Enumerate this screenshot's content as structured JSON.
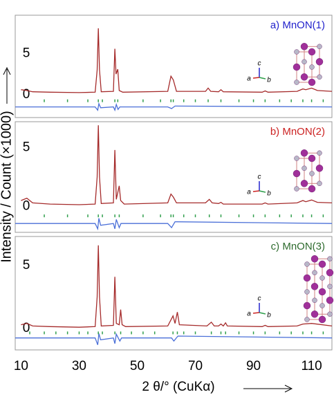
{
  "chart_data": [
    {
      "type": "line",
      "title": "a) MnON(1)",
      "title_color": "#2222cc",
      "ylabel": "Intensity / Count (×1000)",
      "xlim": [
        8,
        117
      ],
      "ylim": [
        -2.8,
        9.7
      ],
      "yticks": [
        0,
        5
      ],
      "annotations": [
        "a",
        "b",
        "c"
      ],
      "series": [
        {
          "style": "line",
          "color": "#a52a2a",
          "x": [
            10,
            12,
            14,
            20,
            30,
            35.5,
            36.2,
            36.6,
            37,
            37.6,
            41.8,
            42.3,
            42.7,
            43.3,
            43.8,
            45,
            60.5,
            61.6,
            62.4,
            63.5,
            73.5,
            74.4,
            75.3,
            78,
            78.8,
            79.6,
            93,
            94,
            95,
            105,
            107,
            108,
            110,
            112,
            117
          ],
          "values": [
            0.6,
            0.5,
            0.35,
            0.3,
            0.25,
            0.3,
            3,
            8.1,
            3,
            0.35,
            0.4,
            5.6,
            2.5,
            3.1,
            0.5,
            0.3,
            0.4,
            2.25,
            1.8,
            0.4,
            0.4,
            0.8,
            0.4,
            0.35,
            0.6,
            0.35,
            0.3,
            0.45,
            0.3,
            0.4,
            0.7,
            0.6,
            0.8,
            0.5,
            0.4
          ]
        },
        {
          "style": "line",
          "color": "#4a6fd8",
          "x": [
            8,
            35.5,
            36.4,
            36.8,
            37.4,
            41.8,
            42.3,
            42.8,
            43.4,
            44,
            60.5,
            61.8,
            63,
            117
          ],
          "values": [
            -1.5,
            -1.5,
            -1.9,
            -1.1,
            -1.6,
            -1.5,
            -1.9,
            -1.2,
            -1.8,
            -1.5,
            -1.5,
            -1.7,
            -1.4,
            -1.5
          ]
        },
        {
          "style": "tick",
          "color": "#2e9e4a",
          "x": [
            18,
            26,
            33,
            36.6,
            38,
            42.3,
            43.3,
            52,
            58,
            61.6,
            62.4,
            66,
            70,
            74.4,
            78.8,
            85,
            90,
            94,
            99,
            103,
            107,
            110,
            114
          ],
          "values": [
            -0.75,
            -0.75,
            -0.75,
            -0.75,
            -0.75,
            -0.75,
            -0.75,
            -0.75,
            -0.75,
            -0.75,
            -0.75,
            -0.75,
            -0.75,
            -0.75,
            -0.75,
            -0.75,
            -0.75,
            -0.75,
            -0.75,
            -0.75,
            -0.75,
            -0.75,
            -0.75
          ]
        }
      ]
    },
    {
      "type": "line",
      "title": "b) MnON(2)",
      "title_color": "#cc2222",
      "xlim": [
        8,
        117
      ],
      "ylim": [
        -2.2,
        7.2
      ],
      "yticks": [
        0,
        5
      ],
      "annotations": [
        "a",
        "b",
        "c"
      ],
      "series": [
        {
          "style": "line",
          "color": "#a52a2a",
          "x": [
            10,
            12,
            14,
            20,
            30,
            35.5,
            36.2,
            36.6,
            37,
            37.6,
            41.8,
            42.3,
            42.8,
            43.8,
            44.3,
            45.5,
            60.5,
            61.6,
            62.4,
            63.5,
            73.5,
            74.8,
            75.8,
            78,
            78.8,
            79.6,
            93,
            94,
            95,
            105,
            107,
            108,
            110,
            112,
            117
          ],
          "values": [
            0.5,
            0.7,
            0.3,
            0.2,
            0.15,
            0.2,
            2.5,
            6.9,
            2.5,
            0.25,
            0.3,
            4.8,
            0.6,
            1.75,
            0.5,
            0.2,
            0.3,
            1.05,
            0.8,
            0.3,
            0.3,
            0.6,
            0.3,
            0.25,
            0.35,
            0.2,
            0.2,
            0.3,
            0.2,
            0.3,
            0.5,
            0.4,
            0.55,
            0.35,
            0.3
          ]
        },
        {
          "style": "line",
          "color": "#4a6fd8",
          "x": [
            8,
            35.5,
            36.4,
            36.8,
            37.4,
            41.8,
            42.3,
            42.8,
            43.8,
            44.4,
            60.5,
            61.8,
            63,
            117
          ],
          "values": [
            -1.45,
            -1.45,
            -1.9,
            -1.0,
            -1.6,
            -1.45,
            -1.9,
            -1.1,
            -1.8,
            -1.45,
            -1.45,
            -1.8,
            -1.3,
            -1.45
          ]
        },
        {
          "style": "tick",
          "color": "#2e9e4a",
          "x": [
            18,
            26,
            33,
            36.6,
            38,
            42.3,
            43.8,
            52,
            58,
            61.6,
            62.4,
            66,
            70,
            74.8,
            78.8,
            85,
            90,
            94,
            99,
            103,
            107,
            110,
            114
          ],
          "values": [
            -0.8,
            -0.8,
            -0.8,
            -0.8,
            -0.8,
            -0.8,
            -0.8,
            -0.8,
            -0.8,
            -0.8,
            -0.8,
            -0.8,
            -0.8,
            -0.8,
            -0.8,
            -0.8,
            -0.8,
            -0.8,
            -0.8,
            -0.8,
            -0.8,
            -0.8,
            -0.8
          ]
        }
      ]
    },
    {
      "type": "line",
      "title": "c) MnON(3)",
      "title_color": "#2e6b2e",
      "xlim": [
        8,
        117
      ],
      "ylim": [
        -1.7,
        7.3
      ],
      "yticks": [
        0,
        5
      ],
      "annotations": [
        "a",
        "b",
        "c"
      ],
      "xticks": [
        10,
        30,
        50,
        70,
        90,
        110
      ],
      "xlabel": "2 θ/°  (CuKα)",
      "series": [
        {
          "style": "line",
          "color": "#a52a2a",
          "x": [
            10,
            12,
            14,
            20,
            30,
            35.5,
            36.2,
            36.6,
            37,
            37.6,
            41.8,
            42.3,
            42.8,
            43.8,
            44.3,
            44.8,
            46,
            60.5,
            62.3,
            63,
            63.8,
            64.5,
            74,
            75.5,
            76.5,
            78,
            78.8,
            79.6,
            80.4,
            81,
            93,
            94,
            95,
            105,
            107,
            110,
            117
          ],
          "values": [
            0.3,
            0.4,
            0.2,
            0.15,
            0.1,
            0.15,
            2.5,
            6.6,
            2.5,
            0.2,
            0.25,
            4.1,
            0.4,
            0.3,
            1.5,
            0.3,
            0.15,
            0.2,
            1.0,
            0.4,
            1.3,
            0.3,
            0.2,
            0.5,
            0.2,
            0.2,
            0.35,
            0.2,
            0.45,
            0.2,
            0.15,
            0.25,
            0.15,
            0.2,
            0.35,
            0.4,
            0.2
          ]
        },
        {
          "style": "line",
          "color": "#4a6fd8",
          "x": [
            8,
            35.5,
            36.4,
            36.8,
            37.4,
            41.8,
            42.3,
            42.8,
            44,
            44.6,
            61.8,
            62.6,
            64,
            117
          ],
          "values": [
            -0.75,
            -0.75,
            -1.3,
            -0.4,
            -0.9,
            -0.75,
            -1.2,
            -0.45,
            -1.0,
            -0.75,
            -0.75,
            -1.0,
            -0.6,
            -0.75
          ]
        },
        {
          "style": "tick",
          "color": "#2e9e4a",
          "x": [
            13,
            18,
            22,
            26,
            30,
            33,
            36.6,
            38,
            42.3,
            44.3,
            48,
            52,
            56,
            62.3,
            63.8,
            66,
            70,
            75.5,
            78.8,
            80.4,
            85,
            90,
            94,
            99,
            103,
            107,
            110,
            114
          ],
          "values": [
            -0.35,
            -0.35,
            -0.35,
            -0.35,
            -0.35,
            -0.35,
            -0.35,
            -0.35,
            -0.35,
            -0.35,
            -0.35,
            -0.35,
            -0.35,
            -0.35,
            -0.35,
            -0.35,
            -0.35,
            -0.35,
            -0.35,
            -0.35,
            -0.35,
            -0.35,
            -0.35,
            -0.35,
            -0.35,
            -0.35,
            -0.35,
            -0.35
          ]
        }
      ]
    }
  ]
}
